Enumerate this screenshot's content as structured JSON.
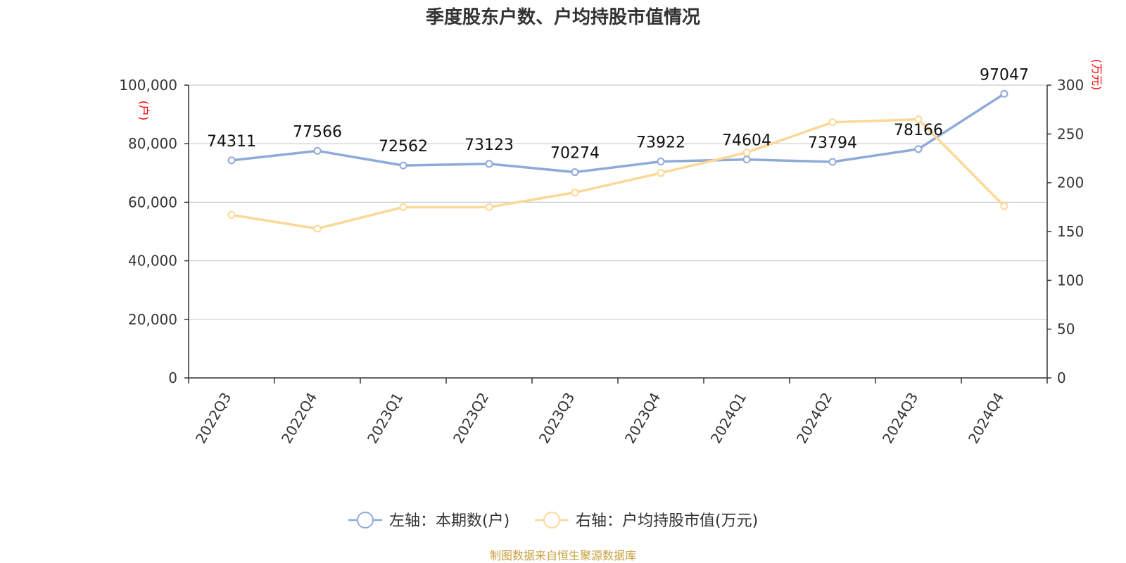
{
  "title": "季度股东户数、户均持股市值情况",
  "source": "制图数据来自恒生聚源数据库",
  "left_unit": "(户)",
  "right_unit": "(万元)",
  "colors": {
    "series1": "#8eaad8",
    "series2": "#fcd896",
    "axis": "#333333",
    "grid": "#cccccc",
    "unit": "#ff0000",
    "source": "#c8a040"
  },
  "chart_data": {
    "type": "line",
    "title": "季度股东户数、户均持股市值情况",
    "categories": [
      "2022Q3",
      "2022Q4",
      "2023Q1",
      "2023Q2",
      "2023Q3",
      "2023Q4",
      "2024Q1",
      "2024Q2",
      "2024Q3",
      "2024Q4"
    ],
    "y_left": {
      "label": "(户)",
      "min": 0,
      "max": 100000,
      "ticks": [
        0,
        20000,
        40000,
        60000,
        80000,
        100000
      ],
      "tick_labels": [
        "0",
        "20,000",
        "40,000",
        "60,000",
        "80,000",
        "100,000"
      ]
    },
    "y_right": {
      "label": "(万元)",
      "min": 0,
      "max": 300,
      "ticks": [
        0,
        50,
        100,
        150,
        200,
        250,
        300
      ],
      "tick_labels": [
        "0",
        "50",
        "100",
        "150",
        "200",
        "250",
        "300"
      ]
    },
    "grid": true,
    "legend_position": "bottom",
    "series": [
      {
        "name": "左轴：本期数(户)",
        "axis": "left",
        "values": [
          74311,
          77566,
          72562,
          73123,
          70274,
          73922,
          74604,
          73794,
          78166,
          97047
        ],
        "labels": [
          "74311",
          "77566",
          "72562",
          "73123",
          "70274",
          "73922",
          "74604",
          "73794",
          "78166",
          "97047"
        ],
        "color": "#8eaad8"
      },
      {
        "name": "右轴：户均持股市值(万元)",
        "axis": "right",
        "values": [
          167,
          153,
          175,
          175,
          190,
          210,
          231,
          262,
          265,
          176
        ],
        "color": "#fcd896"
      }
    ]
  }
}
